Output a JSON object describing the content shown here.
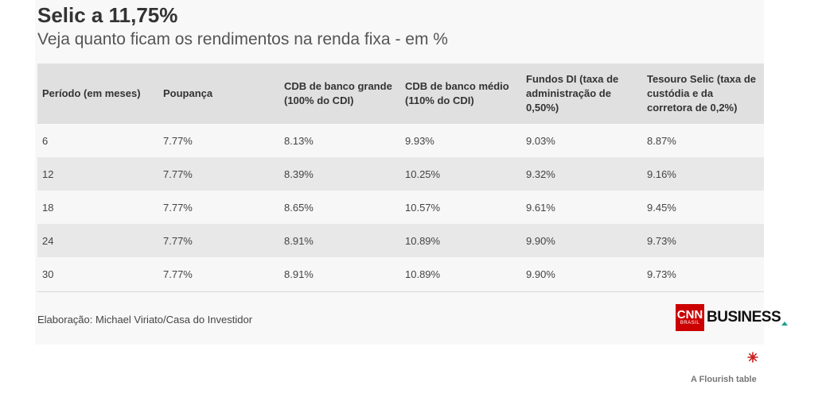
{
  "chart_data": {
    "type": "table",
    "title": "Selic a 11,75%",
    "subtitle": "Veja quanto ficam os rendimentos na renda fixa - em %",
    "columns": [
      "Período (em meses)",
      "Poupança",
      "CDB de banco grande (100% do CDI)",
      "CDB de banco médio (110% do CDI)",
      "Fundos DI (taxa de administração de 0,50%)",
      "Tesouro Selic (taxa de custódia e da corretora de 0,2%)"
    ],
    "rows": [
      [
        "6",
        "7.77%",
        "8.13%",
        "9.93%",
        "9.03%",
        "8.87%"
      ],
      [
        "12",
        "7.77%",
        "8.39%",
        "10.25%",
        "9.32%",
        "9.16%"
      ],
      [
        "18",
        "7.77%",
        "8.65%",
        "10.57%",
        "9.61%",
        "9.45%"
      ],
      [
        "24",
        "7.77%",
        "8.91%",
        "10.89%",
        "9.90%",
        "9.73%"
      ],
      [
        "30",
        "7.77%",
        "8.91%",
        "10.89%",
        "9.90%",
        "9.73%"
      ]
    ],
    "source": "Elaboração: Michael Viriato/Casa do Investidor"
  },
  "logo": {
    "cnn": "CNN",
    "brasil": "BRASIL",
    "business": "BUSINESS"
  },
  "footer": {
    "flourish": "A Flourish table"
  },
  "colors": {
    "header_bg": "#e0e0e0",
    "row_even_bg": "#e8e8e8",
    "brand_red": "#cc0000",
    "accent_teal": "#20a090"
  }
}
